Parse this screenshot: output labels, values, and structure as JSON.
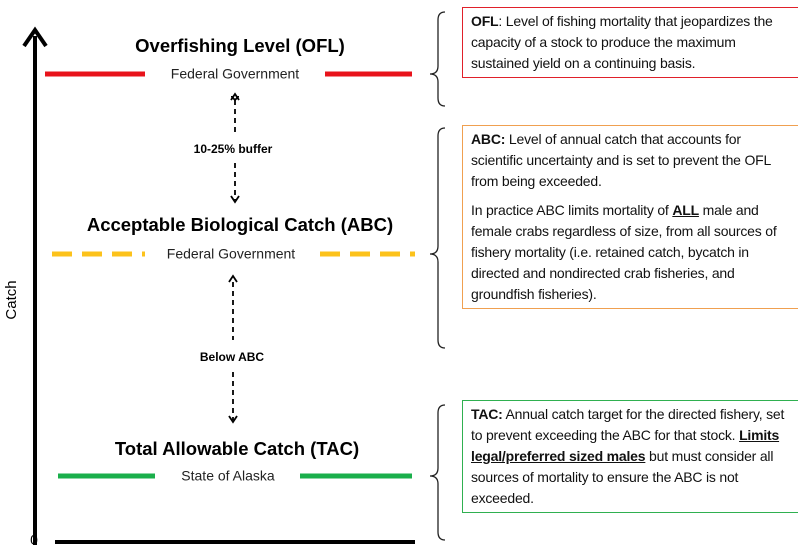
{
  "axis": {
    "label": "Catch",
    "origin": "0"
  },
  "levels": [
    {
      "title": "Overfishing Level (OFL)",
      "authority": "Federal Government"
    },
    {
      "title": "Acceptable Biological Catch (ABC)",
      "authority": "Federal Government"
    },
    {
      "title": "Total Allowable Catch (TAC)",
      "authority": "State of Alaska"
    }
  ],
  "gaps": [
    "10-25% buffer",
    "Below ABC"
  ],
  "boxes": [
    {
      "paragraphs": [
        [
          "OFL",
          ": Level of fishing mortality that jeopardizes the capacity of a stock to produce the maximum sustained yield on a continuing basis."
        ]
      ]
    },
    {
      "paragraphs": [
        [
          "ABC:",
          "  Level of annual catch that accounts for scientific uncertainty and is set to prevent the OFL from being exceeded."
        ],
        [
          "In practice ABC limits mortality of ",
          "ALL",
          " male and female crabs regardless of size, from all sources of fishery mortality (i.e. retained catch, bycatch in directed and nondirected crab fisheries, and groundfish fisheries)."
        ]
      ]
    },
    {
      "paragraphs": [
        [
          "TAC:",
          " Annual catch target for the directed fishery, set to prevent exceeding the ABC for that stock.  ",
          "Limits legal/preferred sized males",
          " but must consider all sources of mortality to ensure the ABC is not exceeded."
        ]
      ]
    }
  ]
}
